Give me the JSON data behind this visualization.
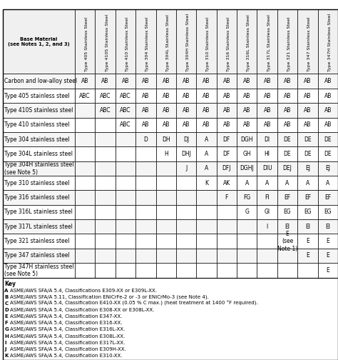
{
  "title": "Base Material\n(see Notes 1, 2, and 3)",
  "col_headers": [
    "Type 405 Stainless Steel",
    "Type 410S Stainless Steel",
    "Type 410 Stainless Steel",
    "Type 304 Stainless Steel",
    "Type 304L Stainless Steel",
    "Type 304H Stainless Steel",
    "Type 310 Stainless Steel",
    "Type 316 Stainless Steel",
    "Type 316L Stainless Steel",
    "Type 317L Stainless Steel",
    "Type 321 Stainless Steel",
    "Type 347 Stainless Steel",
    "Type 347H Stainless Steel"
  ],
  "row_headers": [
    "Carbon and low-alloy steel",
    "Type 405 stainless steel",
    "Type 410S stainless steel",
    "Type 410 stainless steel",
    "Type 304 stainless steel",
    "Type 304L stainless steel",
    "Type 304H stainless steel\n(see Note 5)",
    "Type 310 stainless steel",
    "Type 316 stainless steel",
    "Type 316L stainless steel",
    "Type 317L stainless steel",
    "Type 321 stainless steel",
    "Type 347 stainless steel",
    "Type 347H stainless steel\n(see Note 5)"
  ],
  "cell_data": [
    [
      "AB",
      "AB",
      "AB",
      "AB",
      "AB",
      "AB",
      "AB",
      "AB",
      "AB",
      "AB",
      "AB",
      "AB",
      "AB"
    ],
    [
      "ABC",
      "ABC",
      "ABC",
      "AB",
      "AB",
      "AB",
      "AB",
      "AB",
      "AB",
      "AB",
      "AB",
      "AB",
      "AB"
    ],
    [
      "",
      "ABC",
      "ABC",
      "AB",
      "AB",
      "AB",
      "AB",
      "AB",
      "AB",
      "AB",
      "AB",
      "AB",
      "AB"
    ],
    [
      "",
      "",
      "ABC",
      "AB",
      "AB",
      "AB",
      "AB",
      "AB",
      "AB",
      "AB",
      "AB",
      "AB",
      "AB"
    ],
    [
      "",
      "",
      "",
      "D",
      "DH",
      "DJ",
      "A",
      "DF",
      "DGH",
      "DI",
      "DE",
      "DE",
      "DE"
    ],
    [
      "",
      "",
      "",
      "",
      "H",
      "DHJ",
      "A",
      "DF",
      "GH",
      "HI",
      "DE",
      "DE",
      "DE"
    ],
    [
      "",
      "",
      "",
      "",
      "",
      "J",
      "A",
      "DFJ",
      "DGHJ",
      "DIU",
      "DEJ",
      "EJ",
      "EJ"
    ],
    [
      "",
      "",
      "",
      "",
      "",
      "",
      "K",
      "AK",
      "A",
      "A",
      "A",
      "A",
      "A"
    ],
    [
      "",
      "",
      "",
      "",
      "",
      "",
      "",
      "F",
      "FG",
      "FI",
      "EF",
      "EF",
      "EF"
    ],
    [
      "",
      "",
      "",
      "",
      "",
      "",
      "",
      "",
      "G",
      "GI",
      "EG",
      "EG",
      "EG"
    ],
    [
      "",
      "",
      "",
      "",
      "",
      "",
      "",
      "",
      "",
      "I",
      "EI",
      "EI",
      "EI"
    ],
    [
      "",
      "",
      "",
      "",
      "",
      "",
      "",
      "",
      "",
      "",
      "E\n(see\nNote 1)",
      "E",
      "E"
    ],
    [
      "",
      "",
      "",
      "",
      "",
      "",
      "",
      "",
      "",
      "",
      "",
      "E",
      "E"
    ],
    [
      "",
      "",
      "",
      "",
      "",
      "",
      "",
      "",
      "",
      "",
      "",
      "",
      "E"
    ]
  ],
  "key_lines": [
    [
      "A",
      "ASME/AWS SFA/A 5.4, Classifications E309-XX or E309L-XX."
    ],
    [
      "B",
      "ASME/AWS SFA/A 5.11, Classification ENiCrFe-2 or -3 or ENiCrMo-3 (see Note 4)."
    ],
    [
      "C",
      "ASME/AWS SFA/A 5.4, Classification E410-XX (0.05 % C max.) (heat treatment at 1400 °F required)."
    ],
    [
      "D",
      "ASME/AWS SFA/A 5.4, Classification E308-XX or E308L-XX."
    ],
    [
      "E",
      "ASME/AWS SFA/A 5.4, Classification E347-XX."
    ],
    [
      "F",
      "ASME/AWS SFA/A 5.4, Classification E316-XX."
    ],
    [
      "G",
      "ASME/AWS SFA/A 5.4, Classification E316L-XX."
    ],
    [
      "H",
      "ASME/AWS SFA/A 5.4, Classification E308L-XX."
    ],
    [
      "I",
      "ASME/AWS SFA/A 5.4, Classification E317L-XX."
    ],
    [
      "J",
      "ASME/AWS SFA/A 5.4, Classification E309H-XX."
    ],
    [
      "K",
      "ASME/AWS SFA/A 5.4, Classification E310-XX."
    ]
  ],
  "bg_color": "#ffffff",
  "text_color": "#000000",
  "fontsize_cell": 5.5,
  "fontsize_header_col": 4.5,
  "fontsize_header_row": 5.2,
  "fontsize_key": 5.0
}
